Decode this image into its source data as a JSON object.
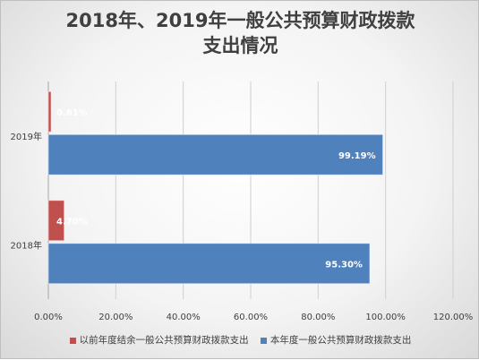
{
  "chart_data": {
    "type": "bar",
    "orientation": "horizontal",
    "stacked": false,
    "title_lines": [
      "2018年、2019年一般公共预算财政拨款",
      "支出情况"
    ],
    "categories": [
      "2019年",
      "2018年"
    ],
    "series": [
      {
        "name": "以前年度结余一般公共预算财政拨款支出",
        "values": [
          0.81,
          4.7
        ],
        "labels": [
          "0.81%",
          "4.70%"
        ],
        "color": "#c0504d"
      },
      {
        "name": "本年度一般公共预算财政拨款支出",
        "values": [
          99.19,
          95.3
        ],
        "labels": [
          "99.19%",
          "95.30%"
        ],
        "color": "#4f81bd"
      }
    ],
    "xlim": [
      0,
      120
    ],
    "xticks": [
      0,
      20,
      40,
      60,
      80,
      100,
      120
    ],
    "xtick_labels": [
      "0.00%",
      "20.00%",
      "40.00%",
      "60.00%",
      "80.00%",
      "100.00%",
      "120.00%"
    ],
    "grid": true,
    "legend_position": "bottom"
  }
}
